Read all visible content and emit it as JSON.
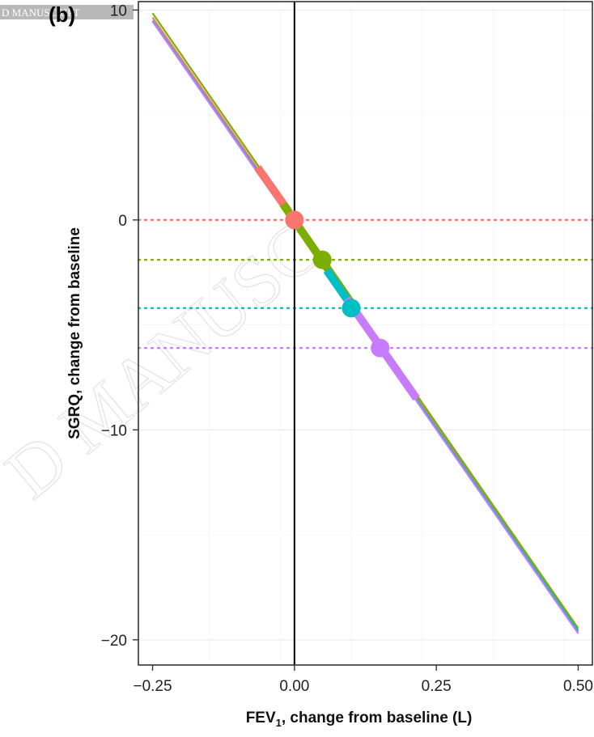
{
  "panel_label": "(b)",
  "watermark": "D MANUSCRIPT",
  "watermark_diagonal": "D MANUSC",
  "chart_data": {
    "type": "line",
    "xlabel_main": "FEV",
    "xlabel_sub": "1",
    "xlabel_rest": ", change from baseline (L)",
    "ylabel": "SGRQ, change from baseline",
    "xlim": [
      -0.275,
      0.525
    ],
    "ylim": [
      -21.2,
      10.4
    ],
    "x_ticks": [
      -0.25,
      0,
      0.25,
      0.5
    ],
    "x_tick_labels": [
      "−0.25",
      "0.00",
      "0.25",
      "0.50"
    ],
    "y_ticks": [
      10,
      0,
      -10,
      -20
    ],
    "y_tick_labels": [
      "10",
      "0",
      "−10",
      "−20"
    ],
    "grid": true,
    "vline_x": 0,
    "series": [
      {
        "color": "#F8766D",
        "line": [
          [
            -0.25,
            9.65
          ],
          [
            0.5,
            -19.55
          ]
        ],
        "segment": [
          [
            -0.065,
            2.5
          ],
          [
            -0.01,
            0.4
          ]
        ],
        "point": [
          0,
          0
        ],
        "hline_y": 0
      },
      {
        "color": "#7CAE00",
        "line": [
          [
            -0.25,
            9.85
          ],
          [
            0.5,
            -19.45
          ]
        ],
        "segment": [
          [
            -0.02,
            0.75
          ],
          [
            0.1,
            -3.95
          ]
        ],
        "point": [
          0.049,
          -1.9
        ],
        "hline_y": -1.9
      },
      {
        "color": "#00BFC4",
        "line": [
          [
            -0.25,
            9.5
          ],
          [
            0.5,
            -19.6
          ]
        ],
        "segment": [
          [
            0.057,
            -2.4
          ],
          [
            0.102,
            -4.15
          ]
        ],
        "point": [
          0.1,
          -4.2
        ],
        "hline_y": -4.2
      },
      {
        "color": "#C77CFF",
        "line": [
          [
            -0.25,
            9.45
          ],
          [
            0.5,
            -19.7
          ]
        ],
        "segment": [
          [
            0.092,
            -3.75
          ],
          [
            0.215,
            -8.5
          ]
        ],
        "point": [
          0.151,
          -6.1
        ],
        "hline_y": -6.1
      }
    ]
  }
}
